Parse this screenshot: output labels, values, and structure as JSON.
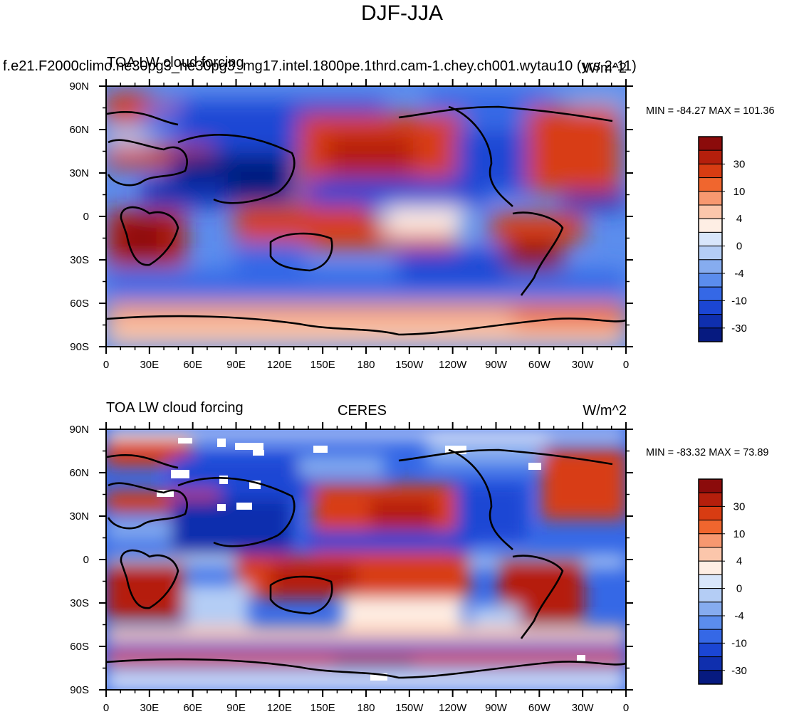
{
  "title": "DJF-JJA",
  "chart_data": [
    {
      "type": "heatmap",
      "left_string": "f.e21.F2000climo.ne30pg3_ne30pg3_mg17.intel.1800pe.1thrd.cam-1.chey.ch001.wytau10 (yrs 2-11)",
      "center_string": "TOA LW cloud forcing",
      "right_string": "W/m^2",
      "min_max": "MIN = -84.27 MAX = 101.36",
      "x_tick_labels": [
        "0",
        "30E",
        "60E",
        "90E",
        "120E",
        "150E",
        "180",
        "150W",
        "120W",
        "90W",
        "60W",
        "30W",
        "0"
      ],
      "y_tick_labels": [
        "90N",
        "60N",
        "30N",
        "0",
        "30S",
        "60S",
        "90S"
      ],
      "colorbar_labels": [
        "30",
        "10",
        "4",
        "0",
        "-4",
        "-10",
        "-30"
      ],
      "colorbar_colors": [
        "#8b0b0b",
        "#b51f0c",
        "#d83c12",
        "#f0662e",
        "#f79870",
        "#fbc6ab",
        "#feeee4",
        "#d8e6fb",
        "#b4cdf5",
        "#86acef",
        "#5b8ded",
        "#3568e6",
        "#1b46d4",
        "#0f2fae",
        "#061a80"
      ]
    },
    {
      "type": "heatmap",
      "left_string": "TOA LW cloud forcing",
      "center_string": "CERES",
      "right_string": "W/m^2",
      "min_max": "MIN = -83.32 MAX =  73.89",
      "x_tick_labels": [
        "0",
        "30E",
        "60E",
        "90E",
        "120E",
        "150E",
        "180",
        "150W",
        "120W",
        "90W",
        "60W",
        "30W",
        "0"
      ],
      "y_tick_labels": [
        "90N",
        "60N",
        "30N",
        "0",
        "30S",
        "60S",
        "90S"
      ],
      "colorbar_labels": [
        "30",
        "10",
        "4",
        "0",
        "-4",
        "-10",
        "-30"
      ],
      "colorbar_colors": [
        "#8b0b0b",
        "#b51f0c",
        "#d83c12",
        "#f0662e",
        "#f79870",
        "#fbc6ab",
        "#feeee4",
        "#d8e6fb",
        "#b4cdf5",
        "#86acef",
        "#5b8ded",
        "#3568e6",
        "#1b46d4",
        "#0f2fae",
        "#061a80"
      ]
    }
  ]
}
